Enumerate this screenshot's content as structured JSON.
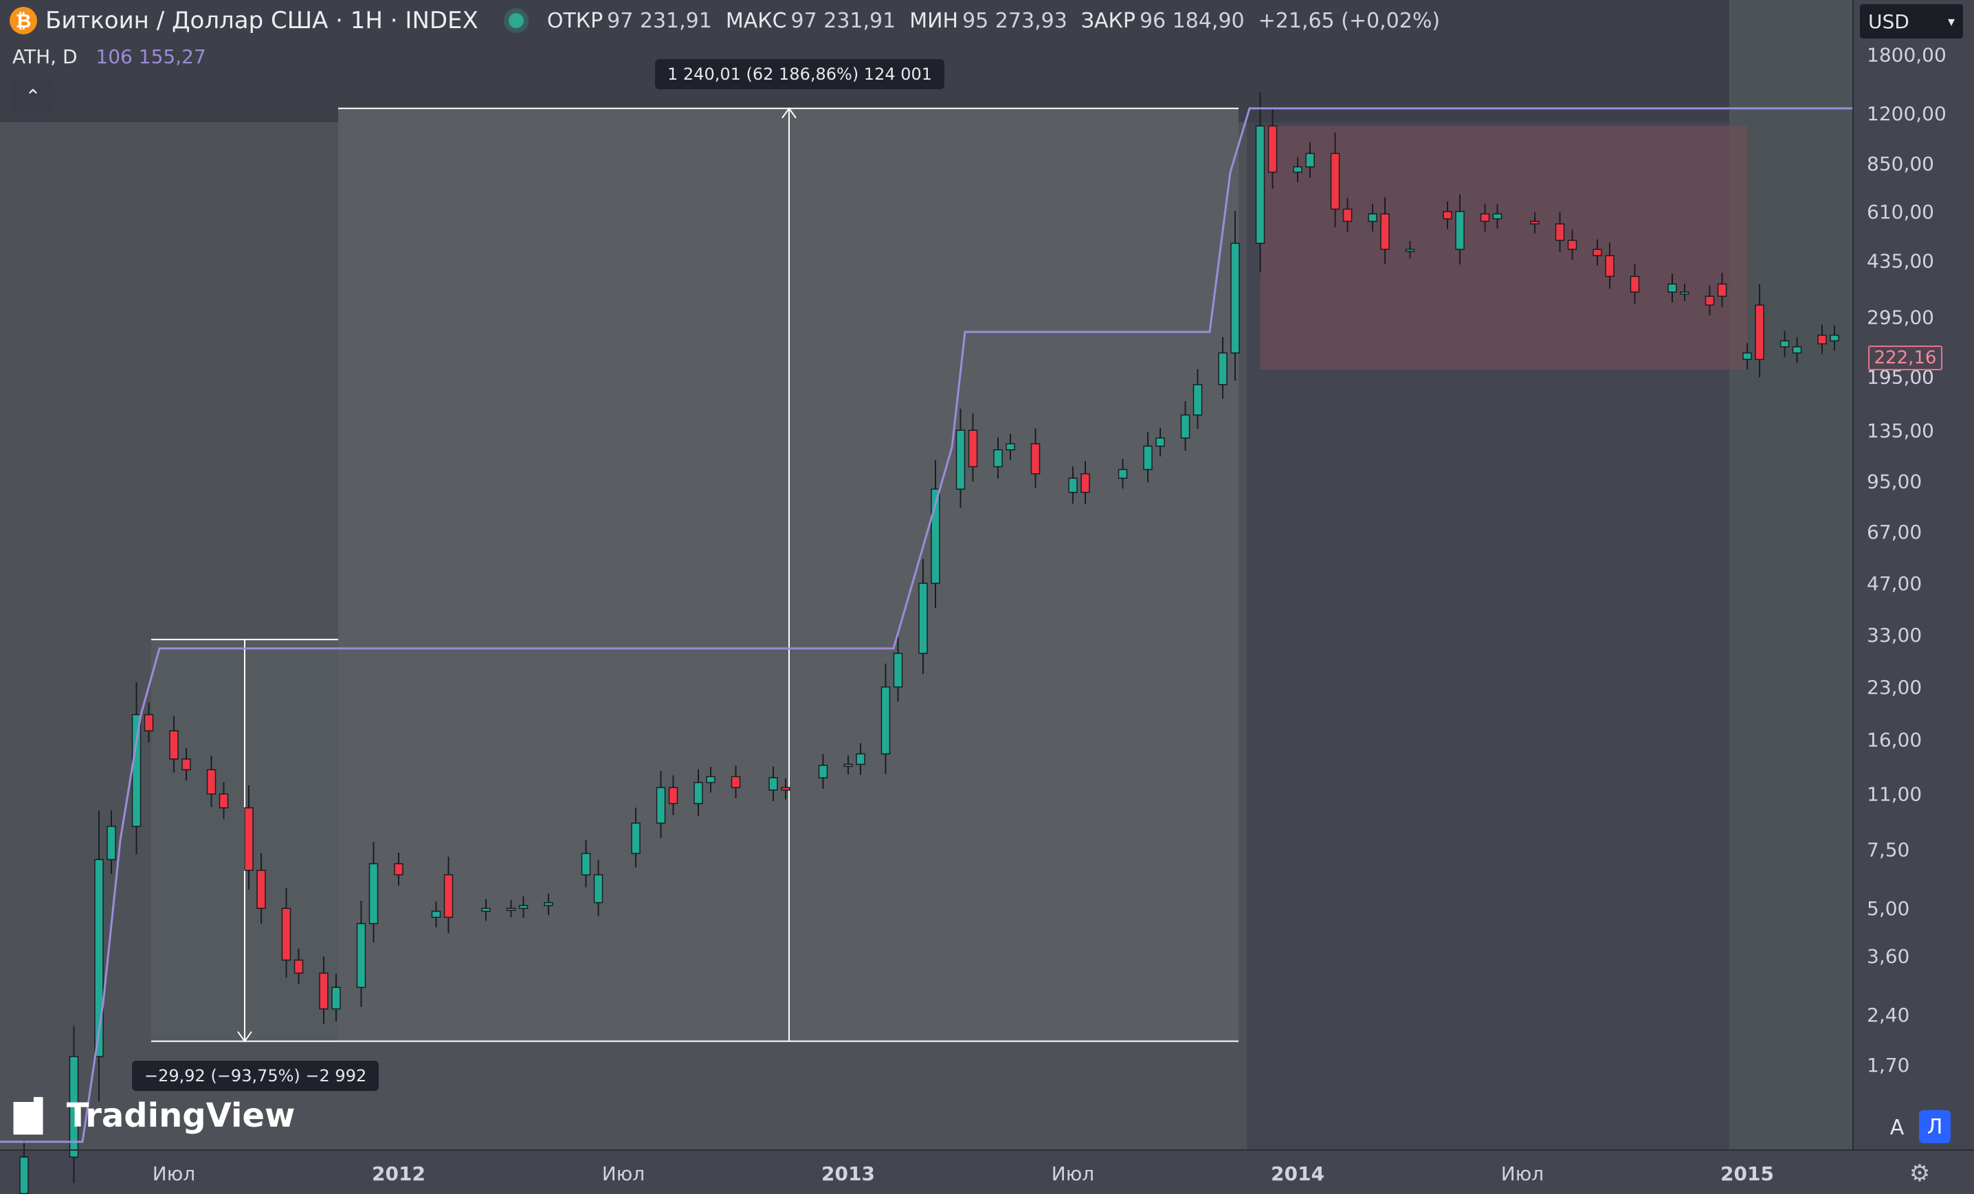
{
  "header": {
    "coin_icon": "bitcoin-icon",
    "symbol_title": "Биткоин / Доллар США · 1Н · INDEX",
    "ohlc": [
      {
        "label": "ОТКР",
        "value": "97 231,91"
      },
      {
        "label": "МАКС",
        "value": "97 231,91"
      },
      {
        "label": "МИН",
        "value": "95 273,93"
      },
      {
        "label": "ЗАКР",
        "value": "96 184,90"
      }
    ],
    "change": "+21,65 (+0,02%)"
  },
  "indicator": {
    "label": "ATH, D",
    "value": "106 155,27"
  },
  "currency": "USD",
  "brand": "TradingView",
  "buttons": {
    "auto": "A",
    "log": "Л"
  },
  "current_price_label": "222,16",
  "measurements": [
    {
      "text": "1 240,01 (62 186,86%) 124 001"
    },
    {
      "text": "−29,92 (−93,75%) −2 992"
    }
  ],
  "chart_data": {
    "type": "candlestick",
    "title": "Биткоин / Доллар США · 1Н · INDEX",
    "x_tick_labels": [
      "Июл",
      "2012",
      "Июл",
      "2013",
      "Июл",
      "2014",
      "Июл",
      "2015"
    ],
    "y_tick_labels": [
      "1800,00",
      "1200,00",
      "850,00",
      "610,00",
      "435,00",
      "295,00",
      "195,00",
      "135,00",
      "95,00",
      "67,00",
      "47,00",
      "33,00",
      "23,00",
      "16,00",
      "11,00",
      "7,50",
      "5,00",
      "3,60",
      "2,40",
      "1,70"
    ],
    "y_scale": "log",
    "ylim": [
      1.2,
      2100
    ],
    "xlim": [
      "2011-01",
      "2015-04"
    ],
    "grid": false,
    "colors": {
      "up": "#22ab94",
      "down": "#f23645",
      "ath_line": "#9c8cd9"
    },
    "series": [
      {
        "name": "Close",
        "x": [
          "2011-03",
          "2011-04",
          "2011-05",
          "2011-05",
          "2011-06",
          "2011-06",
          "2011-07",
          "2011-07",
          "2011-08",
          "2011-08",
          "2011-09",
          "2011-09",
          "2011-10",
          "2011-10",
          "2011-11",
          "2011-11",
          "2011-12",
          "2011-12",
          "2012-01",
          "2012-02",
          "2012-02",
          "2012-03",
          "2012-04",
          "2012-04",
          "2012-05",
          "2012-06",
          "2012-06",
          "2012-07",
          "2012-08",
          "2012-08",
          "2012-09",
          "2012-09",
          "2012-10",
          "2012-11",
          "2012-11",
          "2012-12",
          "2013-01",
          "2013-01",
          "2013-02",
          "2013-02",
          "2013-03",
          "2013-03",
          "2013-04",
          "2013-04",
          "2013-05",
          "2013-05",
          "2013-06",
          "2013-07",
          "2013-07",
          "2013-08",
          "2013-09",
          "2013-09",
          "2013-10",
          "2013-10",
          "2013-11",
          "2013-11",
          "2013-12",
          "2013-12",
          "2014-01",
          "2014-01",
          "2014-02",
          "2014-02",
          "2014-03",
          "2014-03",
          "2014-04",
          "2014-05",
          "2014-05",
          "2014-06",
          "2014-06",
          "2014-07",
          "2014-08",
          "2014-08",
          "2014-09",
          "2014-09",
          "2014-10",
          "2014-11",
          "2014-11",
          "2014-12",
          "2014-12",
          "2015-01",
          "2015-01",
          "2015-02",
          "2015-02",
          "2015-03",
          "2015-03"
        ],
        "values": [
          0.9,
          1.8,
          7.0,
          8.8,
          19,
          17,
          14,
          13,
          11,
          10,
          6.5,
          5.0,
          3.5,
          3.2,
          2.5,
          2.9,
          4.5,
          6.8,
          6.3,
          4.7,
          4.9,
          5.0,
          5.0,
          5.1,
          5.2,
          6.3,
          7.3,
          9.0,
          11.5,
          10.3,
          11.9,
          12.4,
          11.5,
          11.3,
          12.3,
          13.4,
          13.5,
          14.5,
          23,
          29,
          47,
          90,
          135,
          105,
          118,
          123,
          100,
          88,
          97,
          103,
          121,
          128,
          150,
          185,
          230,
          490,
          1100,
          800,
          830,
          910,
          620,
          570,
          600,
          470,
          470,
          610,
          580,
          600,
          570,
          560,
          500,
          470,
          450,
          390,
          350,
          350,
          370,
          340,
          320,
          220,
          230,
          240,
          250,
          260,
          245
        ]
      },
      {
        "name": "ATH, D",
        "values": [
          30,
          30,
          266,
          1242
        ]
      }
    ],
    "annotations": [
      {
        "type": "range-measure",
        "from": 2.0,
        "to": 1242,
        "label": "1 240,01 (62 186,86%) 124 001"
      },
      {
        "type": "range-measure",
        "from": 31.9,
        "to": 2.0,
        "label": "−29,92 (−93,75%) −2 992"
      },
      {
        "type": "highlight-zone",
        "from_date": "2013-12",
        "to_date": "2015-01",
        "low": 205,
        "high": 1100
      }
    ]
  }
}
